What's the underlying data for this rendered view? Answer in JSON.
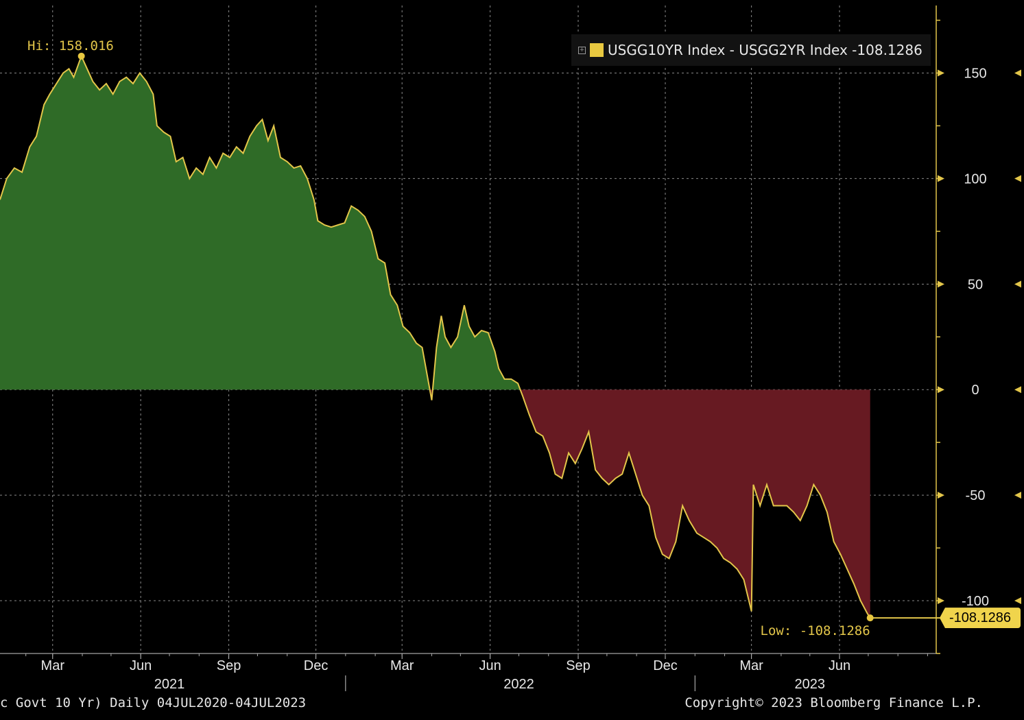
{
  "footer": {
    "left": "c Govt 10 Yr)  Daily 04JUL2020-04JUL2023",
    "right": "Copyright© 2023 Bloomberg Finance L.P."
  },
  "legend": {
    "label": "USGG10YR Index - USGG2YR Index -108.1286",
    "color": "#e8c840"
  },
  "last_value_tag": "-108.1286",
  "colors": {
    "positive_fill": "#2f6b27",
    "negative_fill": "#671a22",
    "line": "#e3c64a",
    "grid": "#8a8a8a"
  },
  "chart_data": {
    "type": "area",
    "title": "",
    "xlabel": "",
    "ylabel": "",
    "ylim": [
      -125,
      182
    ],
    "xlim": [
      "2021-01-05",
      "2023-09-10"
    ],
    "yticks": [
      150,
      100,
      50,
      0,
      -50,
      -100
    ],
    "month_ticks": [
      {
        "label": "Mar",
        "date": "2021-03-01"
      },
      {
        "label": "Jun",
        "date": "2021-06-01"
      },
      {
        "label": "Sep",
        "date": "2021-09-01"
      },
      {
        "label": "Dec",
        "date": "2021-12-01"
      },
      {
        "label": "Mar",
        "date": "2022-03-01"
      },
      {
        "label": "Jun",
        "date": "2022-06-01"
      },
      {
        "label": "Sep",
        "date": "2022-09-01"
      },
      {
        "label": "Dec",
        "date": "2022-12-01"
      },
      {
        "label": "Mar",
        "date": "2023-03-01"
      },
      {
        "label": "Jun",
        "date": "2023-06-01"
      }
    ],
    "year_labels": [
      {
        "label": "2021",
        "date": "2021-07-01"
      },
      {
        "label": "2022",
        "date": "2022-07-01"
      },
      {
        "label": "2023",
        "date": "2023-05-01"
      }
    ],
    "year_separators": [
      "2022-01-01",
      "2023-01-01"
    ],
    "high": {
      "label": "Hi: 158.016",
      "value": 158.016,
      "date": "2021-03-31"
    },
    "low": {
      "label": "Low: -108.1286",
      "value": -108.1286,
      "date": "2023-07-03"
    },
    "series": [
      {
        "name": "USGG10YR Index - USGG2YR Index",
        "points": [
          [
            "2021-01-05",
            90
          ],
          [
            "2021-01-12",
            100
          ],
          [
            "2021-01-20",
            105
          ],
          [
            "2021-01-28",
            103
          ],
          [
            "2021-02-05",
            115
          ],
          [
            "2021-02-12",
            120
          ],
          [
            "2021-02-20",
            135
          ],
          [
            "2021-02-26",
            140
          ],
          [
            "2021-03-05",
            145
          ],
          [
            "2021-03-12",
            150
          ],
          [
            "2021-03-18",
            152
          ],
          [
            "2021-03-23",
            148
          ],
          [
            "2021-03-31",
            158
          ],
          [
            "2021-04-06",
            152
          ],
          [
            "2021-04-12",
            146
          ],
          [
            "2021-04-19",
            142
          ],
          [
            "2021-04-26",
            145
          ],
          [
            "2021-05-03",
            140
          ],
          [
            "2021-05-10",
            146
          ],
          [
            "2021-05-17",
            148
          ],
          [
            "2021-05-24",
            145
          ],
          [
            "2021-05-31",
            150
          ],
          [
            "2021-06-07",
            146
          ],
          [
            "2021-06-14",
            140
          ],
          [
            "2021-06-18",
            125
          ],
          [
            "2021-06-25",
            122
          ],
          [
            "2021-07-02",
            120
          ],
          [
            "2021-07-08",
            108
          ],
          [
            "2021-07-15",
            110
          ],
          [
            "2021-07-22",
            100
          ],
          [
            "2021-07-29",
            105
          ],
          [
            "2021-08-05",
            102
          ],
          [
            "2021-08-12",
            110
          ],
          [
            "2021-08-19",
            105
          ],
          [
            "2021-08-26",
            112
          ],
          [
            "2021-09-02",
            110
          ],
          [
            "2021-09-09",
            115
          ],
          [
            "2021-09-16",
            112
          ],
          [
            "2021-09-23",
            120
          ],
          [
            "2021-09-30",
            125
          ],
          [
            "2021-10-06",
            128
          ],
          [
            "2021-10-12",
            118
          ],
          [
            "2021-10-18",
            125
          ],
          [
            "2021-10-25",
            110
          ],
          [
            "2021-11-01",
            108
          ],
          [
            "2021-11-08",
            105
          ],
          [
            "2021-11-15",
            106
          ],
          [
            "2021-11-22",
            100
          ],
          [
            "2021-11-29",
            90
          ],
          [
            "2021-12-03",
            80
          ],
          [
            "2021-12-10",
            78
          ],
          [
            "2021-12-17",
            77
          ],
          [
            "2021-12-24",
            78
          ],
          [
            "2021-12-31",
            79
          ],
          [
            "2022-01-07",
            87
          ],
          [
            "2022-01-14",
            85
          ],
          [
            "2022-01-21",
            82
          ],
          [
            "2022-01-28",
            75
          ],
          [
            "2022-02-04",
            62
          ],
          [
            "2022-02-11",
            60
          ],
          [
            "2022-02-17",
            45
          ],
          [
            "2022-02-24",
            40
          ],
          [
            "2022-03-02",
            30
          ],
          [
            "2022-03-09",
            27
          ],
          [
            "2022-03-16",
            22
          ],
          [
            "2022-03-22",
            20
          ],
          [
            "2022-03-28",
            5
          ],
          [
            "2022-04-01",
            -5
          ],
          [
            "2022-04-06",
            20
          ],
          [
            "2022-04-11",
            35
          ],
          [
            "2022-04-15",
            25
          ],
          [
            "2022-04-21",
            20
          ],
          [
            "2022-04-28",
            25
          ],
          [
            "2022-05-05",
            40
          ],
          [
            "2022-05-10",
            30
          ],
          [
            "2022-05-16",
            25
          ],
          [
            "2022-05-23",
            28
          ],
          [
            "2022-05-30",
            27
          ],
          [
            "2022-06-06",
            18
          ],
          [
            "2022-06-10",
            10
          ],
          [
            "2022-06-16",
            5
          ],
          [
            "2022-06-23",
            5
          ],
          [
            "2022-06-30",
            3
          ],
          [
            "2022-07-05",
            -3
          ],
          [
            "2022-07-12",
            -12
          ],
          [
            "2022-07-19",
            -20
          ],
          [
            "2022-07-26",
            -22
          ],
          [
            "2022-08-02",
            -30
          ],
          [
            "2022-08-08",
            -40
          ],
          [
            "2022-08-15",
            -42
          ],
          [
            "2022-08-22",
            -30
          ],
          [
            "2022-08-29",
            -35
          ],
          [
            "2022-09-05",
            -28
          ],
          [
            "2022-09-12",
            -20
          ],
          [
            "2022-09-19",
            -38
          ],
          [
            "2022-09-26",
            -42
          ],
          [
            "2022-10-03",
            -45
          ],
          [
            "2022-10-10",
            -42
          ],
          [
            "2022-10-17",
            -40
          ],
          [
            "2022-10-24",
            -30
          ],
          [
            "2022-10-31",
            -40
          ],
          [
            "2022-11-07",
            -50
          ],
          [
            "2022-11-14",
            -55
          ],
          [
            "2022-11-21",
            -70
          ],
          [
            "2022-11-28",
            -78
          ],
          [
            "2022-12-05",
            -80
          ],
          [
            "2022-12-12",
            -72
          ],
          [
            "2022-12-19",
            -55
          ],
          [
            "2022-12-26",
            -62
          ],
          [
            "2023-01-03",
            -68
          ],
          [
            "2023-01-10",
            -70
          ],
          [
            "2023-01-17",
            -72
          ],
          [
            "2023-01-24",
            -75
          ],
          [
            "2023-01-31",
            -80
          ],
          [
            "2023-02-07",
            -82
          ],
          [
            "2023-02-14",
            -85
          ],
          [
            "2023-02-21",
            -90
          ],
          [
            "2023-03-01",
            -105
          ],
          [
            "2023-03-03",
            -45
          ],
          [
            "2023-03-10",
            -55
          ],
          [
            "2023-03-17",
            -45
          ],
          [
            "2023-03-24",
            -55
          ],
          [
            "2023-03-31",
            -55
          ],
          [
            "2023-04-07",
            -55
          ],
          [
            "2023-04-14",
            -58
          ],
          [
            "2023-04-21",
            -62
          ],
          [
            "2023-04-28",
            -55
          ],
          [
            "2023-05-05",
            -45
          ],
          [
            "2023-05-12",
            -50
          ],
          [
            "2023-05-19",
            -58
          ],
          [
            "2023-05-26",
            -72
          ],
          [
            "2023-06-02",
            -78
          ],
          [
            "2023-06-09",
            -85
          ],
          [
            "2023-06-16",
            -92
          ],
          [
            "2023-06-23",
            -100
          ],
          [
            "2023-06-30",
            -106
          ],
          [
            "2023-07-03",
            -108.1286
          ]
        ]
      }
    ]
  }
}
